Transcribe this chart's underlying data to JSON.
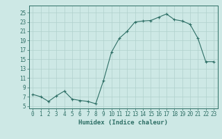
{
  "x": [
    0,
    1,
    2,
    3,
    4,
    5,
    6,
    7,
    8,
    9,
    10,
    11,
    12,
    13,
    14,
    15,
    16,
    17,
    18,
    19,
    20,
    21,
    22,
    23
  ],
  "y": [
    7.5,
    7.0,
    6.0,
    7.2,
    8.2,
    6.5,
    6.2,
    6.0,
    5.5,
    10.5,
    16.5,
    19.5,
    21.0,
    23.0,
    23.2,
    23.3,
    24.0,
    24.7,
    23.5,
    23.2,
    22.5,
    19.5,
    14.5,
    14.5
  ],
  "line_color": "#2d6e65",
  "marker": "+",
  "marker_color": "#2d6e65",
  "bg_color": "#cde8e5",
  "grid_color": "#b0d0cc",
  "xlabel": "Humidex (Indice chaleur)",
  "ylabel_ticks": [
    5,
    7,
    9,
    11,
    13,
    15,
    17,
    19,
    21,
    23,
    25
  ],
  "xlim": [
    -0.5,
    23.5
  ],
  "ylim": [
    4.5,
    26.5
  ],
  "xticks": [
    0,
    1,
    2,
    3,
    4,
    5,
    6,
    7,
    8,
    9,
    10,
    11,
    12,
    13,
    14,
    15,
    16,
    17,
    18,
    19,
    20,
    21,
    22,
    23
  ],
  "axis_color": "#2d6e65",
  "font_size_xlabel": 6.5,
  "font_size_ticks": 5.5
}
